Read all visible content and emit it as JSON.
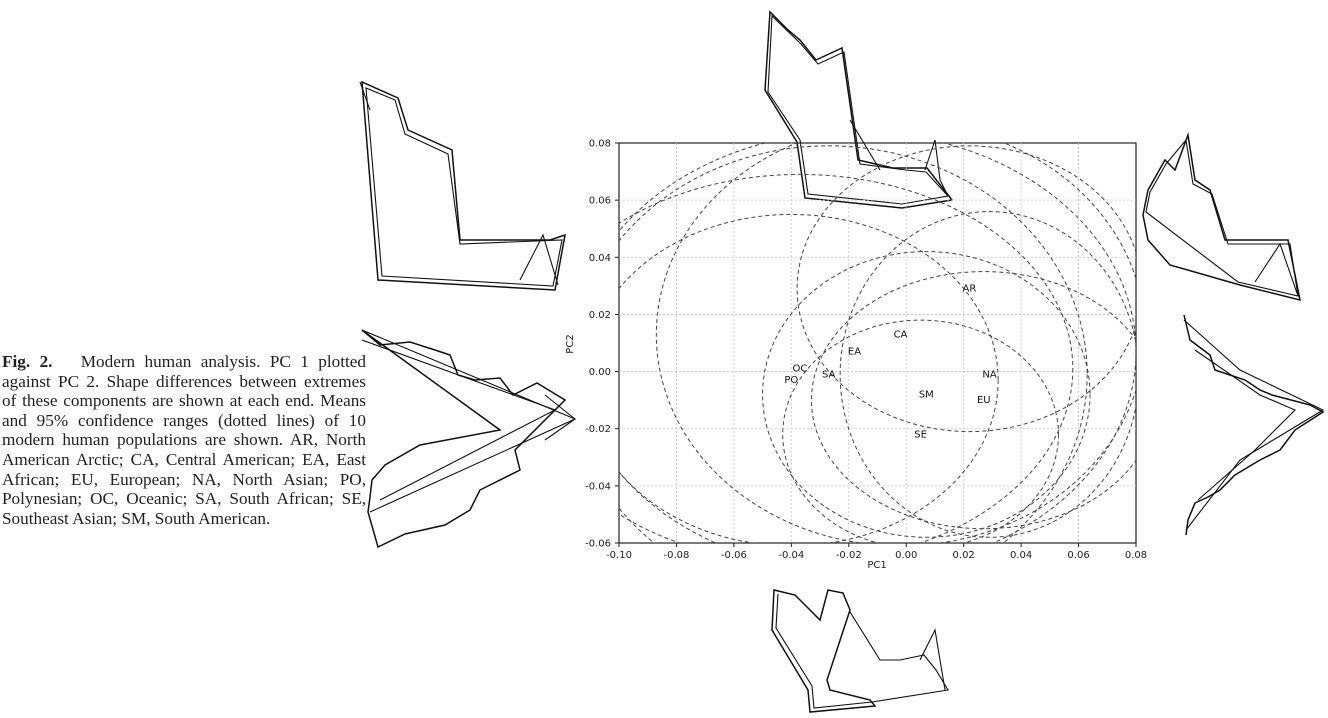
{
  "caption": {
    "figure_label": "Fig. 2.",
    "text": "Modern human analysis. PC 1 plotted against PC 2. Shape differences between extremes of these components are shown at each end. Means and 95% confidence ranges (dotted lines) of 10 modern human populations are shown. AR, North American Arctic; CA, Central American; EA, East African; EU, European; NA, North Asian; PO, Polynesian; OC, Oceanic; SA, South African; SE, Southeast Asian; SM, South American."
  },
  "chart_data": {
    "type": "scatter",
    "xlabel": "PC1",
    "ylabel": "PC2",
    "xlim": [
      -0.1,
      0.08
    ],
    "ylim": [
      -0.06,
      0.08
    ],
    "x_ticks": [
      "-0.10",
      "-0.08",
      "-0.06",
      "-0.04",
      "-0.02",
      "0.00",
      "0.02",
      "0.04",
      "0.06",
      "0.08"
    ],
    "y_ticks": [
      "-0.06",
      "-0.04",
      "-0.02",
      "0.00",
      "0.02",
      "0.04",
      "0.06",
      "0.08"
    ],
    "grid": true,
    "points": [
      {
        "label": "AR",
        "x": 0.022,
        "y": 0.029
      },
      {
        "label": "CA",
        "x": -0.002,
        "y": 0.013
      },
      {
        "label": "EA",
        "x": -0.018,
        "y": 0.007
      },
      {
        "label": "NA",
        "x": 0.029,
        "y": -0.001
      },
      {
        "label": "OC",
        "x": -0.037,
        "y": 0.001
      },
      {
        "label": "PO",
        "x": -0.04,
        "y": -0.003
      },
      {
        "label": "SA",
        "x": -0.027,
        "y": -0.001
      },
      {
        "label": "SM",
        "x": 0.007,
        "y": -0.008
      },
      {
        "label": "EU",
        "x": 0.027,
        "y": -0.01
      },
      {
        "label": "SE",
        "x": 0.005,
        "y": -0.022
      }
    ],
    "confidence_ellipses": [
      {
        "cx": 0.022,
        "cy": 0.029,
        "rx": 0.06,
        "ry": 0.05
      },
      {
        "cx": -0.002,
        "cy": 0.013,
        "rx": 0.085,
        "ry": 0.074
      },
      {
        "cx": -0.018,
        "cy": 0.007,
        "rx": 0.098,
        "ry": 0.077
      },
      {
        "cx": 0.029,
        "cy": -0.001,
        "rx": 0.052,
        "ry": 0.057
      },
      {
        "cx": -0.037,
        "cy": 0.001,
        "rx": 0.095,
        "ry": 0.068
      },
      {
        "cx": -0.04,
        "cy": -0.003,
        "rx": 0.072,
        "ry": 0.058
      },
      {
        "cx": -0.027,
        "cy": -0.001,
        "rx": 0.09,
        "ry": 0.08
      },
      {
        "cx": 0.007,
        "cy": -0.008,
        "rx": 0.057,
        "ry": 0.05
      },
      {
        "cx": 0.027,
        "cy": -0.01,
        "rx": 0.06,
        "ry": 0.045
      },
      {
        "cx": 0.005,
        "cy": -0.022,
        "rx": 0.048,
        "ry": 0.04
      }
    ]
  }
}
